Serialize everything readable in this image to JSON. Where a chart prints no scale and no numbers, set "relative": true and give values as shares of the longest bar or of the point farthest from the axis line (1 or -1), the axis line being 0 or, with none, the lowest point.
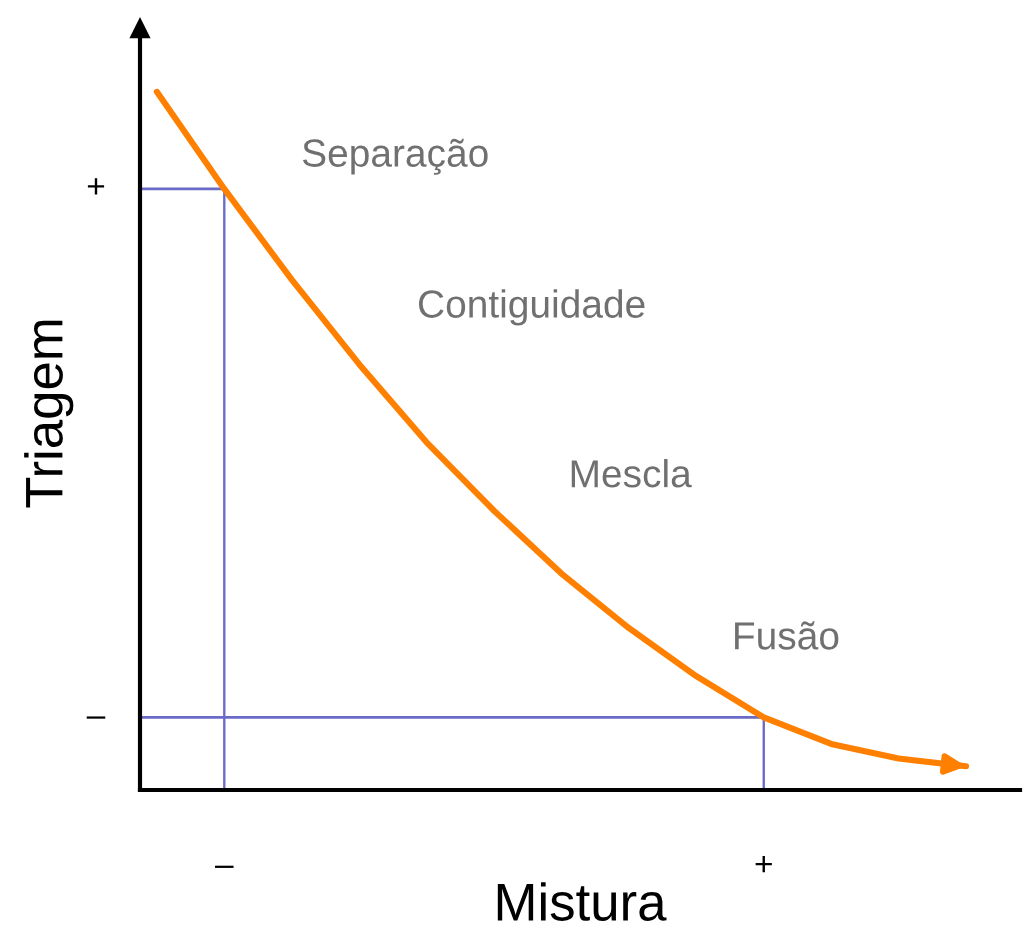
{
  "chart_data": {
    "type": "line",
    "relative": true,
    "xlabel": "Mistura",
    "ylabel": "Triagem",
    "categories": [
      null,
      "–",
      null,
      null,
      null,
      null,
      null,
      null,
      null,
      "+",
      null,
      null,
      null
    ],
    "grid": false,
    "marker": "none",
    "line_style": "solid",
    "series": [
      {
        "type": "bar",
        "color": "#6a6ac8",
        "values": [
          null,
          0.861,
          null,
          null,
          null,
          null,
          null,
          null,
          null,
          0.104,
          null,
          null,
          null
        ]
      },
      {
        "color": "#ff8000",
        "values": [
          1,
          0.861,
          0.731,
          0.61,
          0.498,
          0.4,
          0.31,
          0.232,
          0.163,
          0.104,
          0.066,
          0.045,
          0.034
        ]
      }
    ],
    "ref_lines": [
      {
        "axis": "y",
        "value": 0.861,
        "label": "+",
        "color": "#6a6ac8"
      },
      {
        "axis": "y",
        "value": 0.104,
        "label": "–",
        "color": "#6a6ac8"
      }
    ],
    "annotations": [
      "Separação",
      "Contiguidade",
      "Mescla",
      "Fusão"
    ]
  }
}
